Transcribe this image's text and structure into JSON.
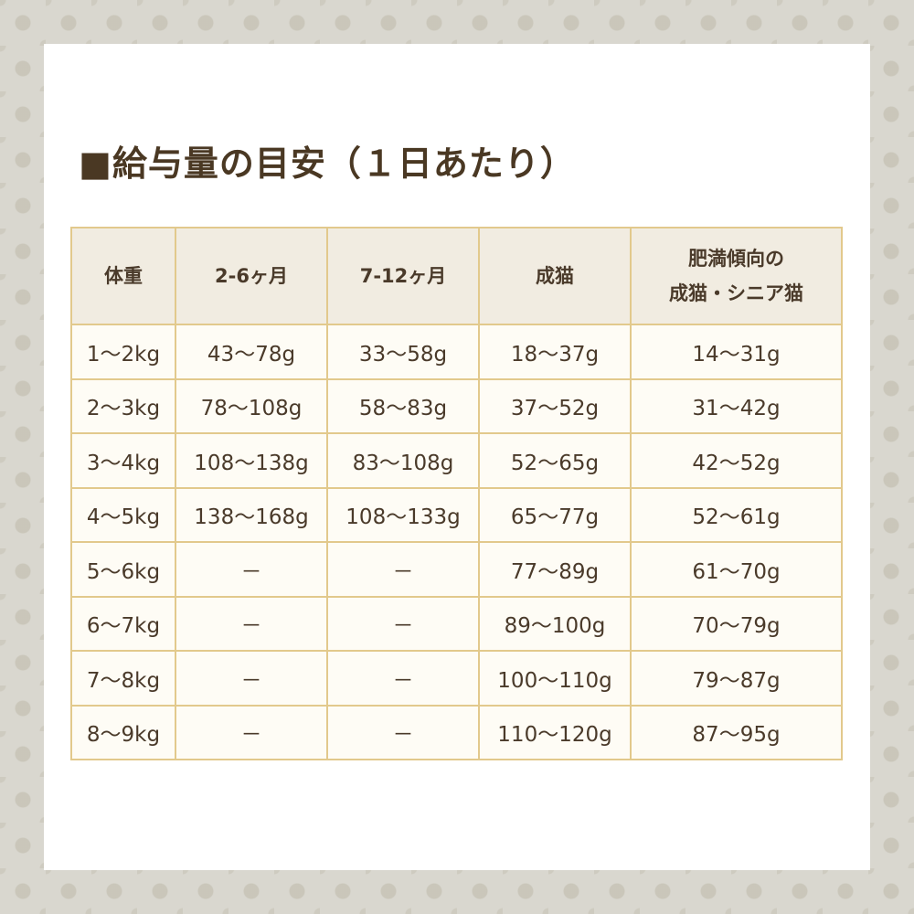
{
  "title": "■給与量の目安（１日あたり）",
  "colors": {
    "text": "#4a3823",
    "border": "#e2c98c",
    "header_bg": "#f1ece1",
    "cell_bg": "#fefcf5",
    "page_bg": "#d9d7cf"
  },
  "table": {
    "headers": [
      "体重",
      "2-6ヶ月",
      "7-12ヶ月",
      "成猫",
      "肥満傾向の\n成猫・シニア猫"
    ],
    "rows": [
      [
        "1～2kg",
        "43～78g",
        "33～58g",
        "18～37g",
        "14～31g"
      ],
      [
        "2～3kg",
        "78～108g",
        "58～83g",
        "37～52g",
        "31～42g"
      ],
      [
        "3～4kg",
        "108～138g",
        "83～108g",
        "52～65g",
        "42～52g"
      ],
      [
        "4～5kg",
        "138～168g",
        "108～133g",
        "65～77g",
        "52～61g"
      ],
      [
        "5～6kg",
        "－",
        "－",
        "77～89g",
        "61～70g"
      ],
      [
        "6～7kg",
        "－",
        "－",
        "89～100g",
        "70～79g"
      ],
      [
        "7～8kg",
        "－",
        "－",
        "100～110g",
        "79～87g"
      ],
      [
        "8～9kg",
        "－",
        "－",
        "110～120g",
        "87～95g"
      ]
    ]
  }
}
